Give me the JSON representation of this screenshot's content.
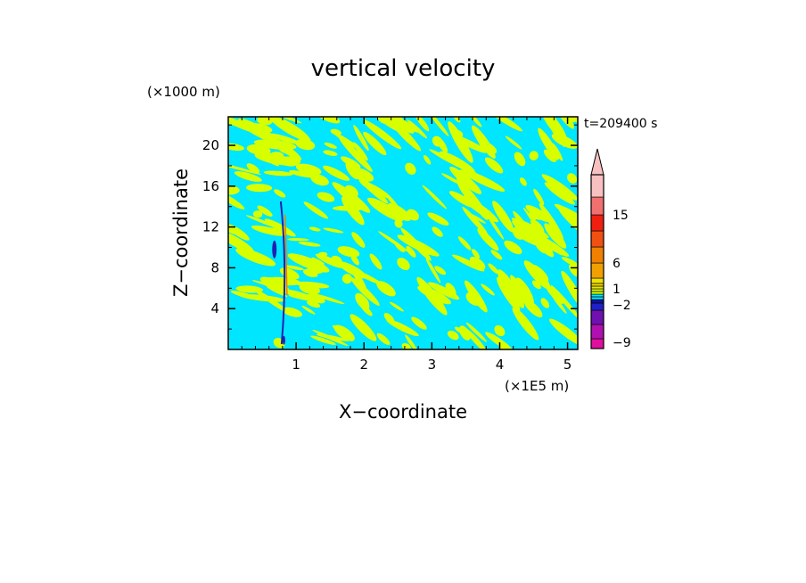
{
  "chart_data": {
    "type": "heatmap",
    "title": "vertical velocity",
    "xlabel": "X−coordinate",
    "ylabel": "Z−coordinate",
    "x_unit": "(×1E5 m)",
    "y_unit": "(×1000 m)",
    "time_label": "t=209400 s",
    "xlim": [
      0,
      5.15
    ],
    "ylim": [
      0,
      22.8
    ],
    "x_ticks": [
      1,
      2,
      3,
      4,
      5
    ],
    "y_ticks": [
      4,
      8,
      12,
      16,
      20
    ],
    "colorbar": {
      "tick_labels": [
        "15",
        "6",
        "1",
        "−2",
        "−9"
      ],
      "levels": [
        {
          "color": "#e0109f"
        },
        {
          "color": "#b010b0"
        },
        {
          "color": "#7010b0"
        },
        {
          "color": "#2020c8"
        },
        {
          "color": "#1010a0"
        },
        {
          "color": "#00e6ff"
        },
        {
          "color": "#d8ff00"
        },
        {
          "color": "#f0e000"
        },
        {
          "color": "#f0a000"
        },
        {
          "color": "#f08000"
        },
        {
          "color": "#f05010"
        },
        {
          "color": "#f02010"
        },
        {
          "color": "#f07070"
        },
        {
          "color": "#f8c0c0"
        }
      ]
    },
    "colors": {
      "background_field": "#00e6ff",
      "positive_field": "#d8ff00",
      "strong_negative": "#2020b0",
      "strong_positive": "#f08000"
    }
  }
}
